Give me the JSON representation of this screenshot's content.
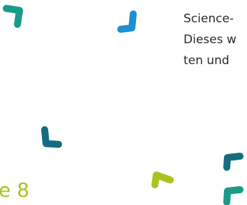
{
  "text_lines": [
    "Science-",
    "Dieses w",
    "ten und"
  ],
  "page_label": "e 8"
}
